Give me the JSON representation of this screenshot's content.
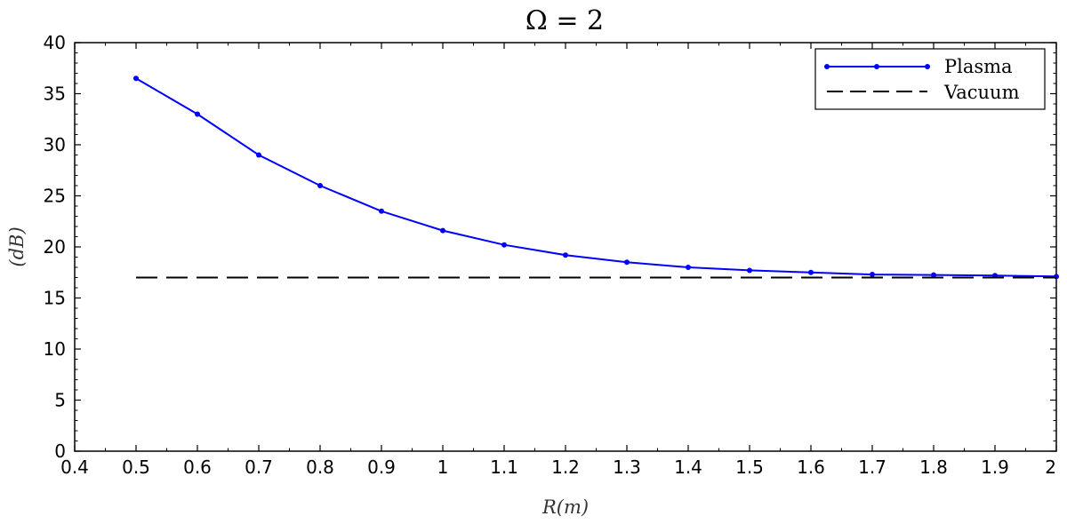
{
  "chart_data": {
    "type": "line",
    "title": "Ω = 2",
    "xlabel": "R(m)",
    "ylabel": "(dB)",
    "xlim": [
      0.4,
      2.0
    ],
    "ylim": [
      0,
      40
    ],
    "x_ticks": [
      "0.4",
      "0.5",
      "0.6",
      "0.7",
      "0.8",
      "0.9",
      "1",
      "1.1",
      "1.2",
      "1.3",
      "1.4",
      "1.5",
      "1.6",
      "1.7",
      "1.8",
      "1.9",
      "2"
    ],
    "y_ticks": [
      "0",
      "5",
      "10",
      "15",
      "20",
      "25",
      "30",
      "35",
      "40"
    ],
    "grid": false,
    "legend_position": "top-right",
    "series": [
      {
        "name": "Plasma",
        "color": "#0000ff",
        "style": "solid-with-markers",
        "x": [
          0.5,
          0.6,
          0.7,
          0.8,
          0.9,
          1.0,
          1.1,
          1.2,
          1.3,
          1.4,
          1.5,
          1.6,
          1.7,
          1.8,
          1.9,
          2.0
        ],
        "values": [
          36.5,
          33.0,
          29.0,
          26.0,
          23.5,
          21.6,
          20.2,
          19.2,
          18.5,
          18.0,
          17.7,
          17.5,
          17.3,
          17.25,
          17.2,
          17.1
        ]
      },
      {
        "name": "Vacuum",
        "color": "#000000",
        "style": "dashed",
        "x": [
          0.5,
          2.0
        ],
        "values": [
          17.0,
          17.0
        ]
      }
    ]
  }
}
